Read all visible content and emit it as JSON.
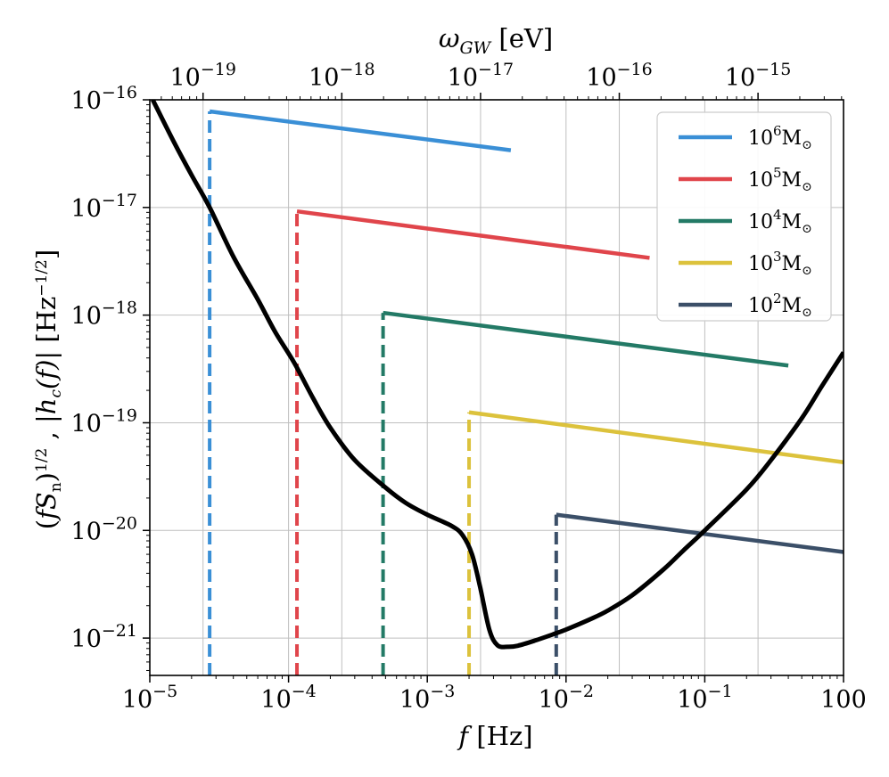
{
  "chart_data": {
    "type": "line",
    "x_scale": "log",
    "y_scale": "log",
    "xlim": [
      1e-05,
      1
    ],
    "ylim": [
      4.5e-22,
      1e-16
    ],
    "xlabel": "f [Hz]",
    "ylabel": "(fS_n)^{1/2} , |h_c(f)| [Hz^{-1/2}]",
    "ylabel_display": "(fSn)1/2 ,  |hc(f)|   [Hz−1/2]",
    "top_xlabel": "ω_GW [eV]",
    "top_xlabel_display": "ωGW [eV]",
    "x_ticks": [
      {
        "value": 1e-05,
        "label": "10−5"
      },
      {
        "value": 0.0001,
        "label": "10−4"
      },
      {
        "value": 0.001,
        "label": "10−3"
      },
      {
        "value": 0.01,
        "label": "10−2"
      },
      {
        "value": 0.1,
        "label": "10−1"
      },
      {
        "value": 1,
        "label": "100"
      }
    ],
    "y_ticks": [
      {
        "value": 1e-16,
        "label": "10−16"
      },
      {
        "value": 1e-17,
        "label": "10−17"
      },
      {
        "value": 1e-18,
        "label": "10−18"
      },
      {
        "value": 1e-19,
        "label": "10−19"
      },
      {
        "value": 1e-20,
        "label": "10−20"
      },
      {
        "value": 1e-21,
        "label": "10−21"
      }
    ],
    "top_ticks": [
      {
        "freq": 2.42e-05,
        "label": "10−19"
      },
      {
        "freq": 0.000242,
        "label": "10−18"
      },
      {
        "freq": 0.00242,
        "label": "10−17"
      },
      {
        "freq": 0.0242,
        "label": "10−16"
      },
      {
        "freq": 0.242,
        "label": "10−15"
      }
    ],
    "grid": true,
    "legend_position": "top-right",
    "sensitivity_curve": {
      "name": "noise",
      "color": "#000000",
      "x": [
        1.05e-05,
        1.5e-05,
        2e-05,
        2.7e-05,
        4e-05,
        6e-05,
        8e-05,
        0.00011,
        0.00015,
        0.0002,
        0.0003,
        0.0005,
        0.0007,
        0.001,
        0.0015,
        0.0018,
        0.0021,
        0.0024,
        0.0028,
        0.0032,
        0.0038,
        0.0045,
        0.006,
        0.008,
        0.01,
        0.015,
        0.02,
        0.03,
        0.05,
        0.07,
        0.1,
        0.2,
        0.3,
        0.5,
        0.7,
        1.0
      ],
      "y": [
        1e-16,
        4e-17,
        2e-17,
        1e-17,
        3.5e-18,
        1.4e-18,
        7e-19,
        3.6e-19,
        1.7e-19,
        9e-20,
        4.5e-20,
        2.5e-20,
        1.8e-20,
        1.4e-20,
        1.1e-20,
        9e-21,
        6e-21,
        3e-21,
        1.2e-21,
        8.6e-22,
        8.3e-22,
        8.5e-22,
        9.5e-22,
        1.08e-21,
        1.2e-21,
        1.5e-21,
        1.8e-21,
        2.5e-21,
        4.3e-21,
        6.5e-21,
        1e-20,
        2.4e-20,
        4.5e-20,
        1.1e-19,
        2.2e-19,
        4.5e-19
      ]
    },
    "series": [
      {
        "name": "10^6 M_sun",
        "legend_base": "10",
        "legend_exp": "6",
        "legend_unit": "M",
        "legend_sub": "⊙",
        "color": "#3a8fd6",
        "f_start": 2.7e-05,
        "x": [
          2.7e-05,
          0.004
        ],
        "y": [
          7.8e-17,
          3.4e-17
        ]
      },
      {
        "name": "10^5 M_sun",
        "legend_base": "10",
        "legend_exp": "5",
        "legend_unit": "M",
        "legend_sub": "⊙",
        "color": "#e0454b",
        "f_start": 0.000115,
        "x": [
          0.000115,
          0.04
        ],
        "y": [
          9.2e-18,
          3.4e-18
        ]
      },
      {
        "name": "10^4 M_sun",
        "legend_base": "10",
        "legend_exp": "4",
        "legend_unit": "M",
        "legend_sub": "⊙",
        "color": "#237a66",
        "f_start": 0.00048,
        "x": [
          0.00048,
          0.4
        ],
        "y": [
          1.05e-18,
          3.4e-19
        ]
      },
      {
        "name": "10^3 M_sun",
        "legend_base": "10",
        "legend_exp": "3",
        "legend_unit": "M",
        "legend_sub": "⊙",
        "color": "#dcc23c",
        "f_start": 0.002,
        "x": [
          0.002,
          1.0
        ],
        "y": [
          1.25e-19,
          4.3e-20
        ]
      },
      {
        "name": "10^2 M_sun",
        "legend_base": "10",
        "legend_exp": "2",
        "legend_unit": "M",
        "legend_sub": "⊙",
        "color": "#3b4f68",
        "f_start": 0.0085,
        "x": [
          0.0085,
          1.0
        ],
        "y": [
          1.4e-20,
          6.3e-21
        ]
      }
    ]
  }
}
